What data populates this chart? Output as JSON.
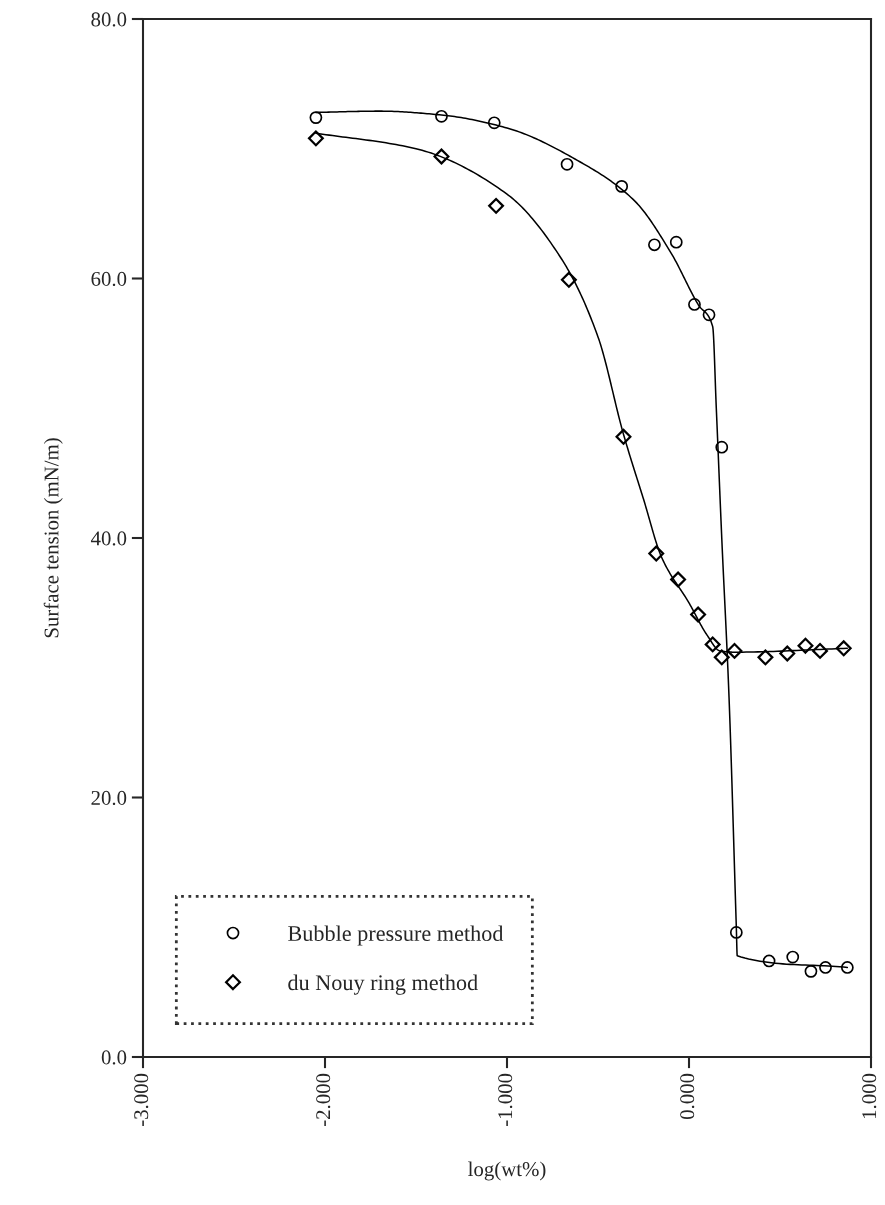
{
  "chart_data": {
    "type": "scatter",
    "xlabel": "log(wt%)",
    "ylabel": "Surface tension (mN/m)",
    "xlim": [
      -3,
      1
    ],
    "ylim": [
      0,
      80
    ],
    "xticks": [
      {
        "value": -3,
        "label": "-3.000"
      },
      {
        "value": -2,
        "label": "-2.000"
      },
      {
        "value": -1,
        "label": "-1.000"
      },
      {
        "value": 0,
        "label": "0.000"
      },
      {
        "value": 1,
        "label": "1.000"
      }
    ],
    "yticks": [
      {
        "value": 0,
        "label": "0.0"
      },
      {
        "value": 20,
        "label": "20.0"
      },
      {
        "value": 40,
        "label": "40.0"
      },
      {
        "value": 60,
        "label": "60.0"
      },
      {
        "value": 80,
        "label": "80.0"
      }
    ],
    "grid": false,
    "legend": "bottom left",
    "series": [
      {
        "name": "Bubble pressure method",
        "marker": "circle",
        "color": "#000000",
        "x": [
          -2.05,
          -1.36,
          -1.07,
          -0.67,
          -0.37,
          -0.19,
          -0.07,
          0.03,
          0.11,
          0.18,
          0.26,
          0.44,
          0.57,
          0.67,
          0.75,
          0.87
        ],
        "values": [
          72.4,
          72.5,
          72.0,
          68.8,
          67.1,
          62.6,
          62.8,
          58.0,
          57.2,
          47.0,
          9.6,
          7.4,
          7.7,
          6.6,
          6.9,
          6.9
        ]
      },
      {
        "name": "du Nouy ring method",
        "marker": "diamond",
        "color": "#000000",
        "x": [
          -2.05,
          -1.36,
          -1.06,
          -0.66,
          -0.36,
          -0.18,
          -0.06,
          0.05,
          0.13,
          0.18,
          0.25,
          0.42,
          0.54,
          0.64,
          0.72,
          0.85
        ],
        "values": [
          70.8,
          69.4,
          65.6,
          59.9,
          47.8,
          38.8,
          36.8,
          34.1,
          31.8,
          30.8,
          31.3,
          30.8,
          31.1,
          31.7,
          31.3,
          31.5
        ]
      },
      {
        "type": "line",
        "marker": "none",
        "line_style": "solid",
        "color": "#000000",
        "x": [
          -2.05,
          -1.7,
          -1.36,
          -1.0,
          -0.6,
          -0.3,
          -0.1,
          0.05,
          0.13,
          0.15,
          0.18,
          0.22,
          0.26,
          0.265,
          0.87
        ],
        "values": [
          72.8,
          72.9,
          72.6,
          71.6,
          69.0,
          66.0,
          62.0,
          58.0,
          56.3,
          50.0,
          40.0,
          27.7,
          10.0,
          7.8,
          6.9
        ]
      },
      {
        "type": "line",
        "marker": "none",
        "line_style": "solid",
        "color": "#000000",
        "x": [
          -2.05,
          -1.5,
          -1.0,
          -0.7,
          -0.5,
          -0.36,
          -0.25,
          -0.15,
          0.0,
          0.1,
          0.17,
          0.25,
          0.87
        ],
        "values": [
          71.2,
          70.0,
          66.5,
          61.5,
          55.5,
          48.0,
          43.0,
          38.5,
          35.0,
          32.5,
          31.3,
          31.2,
          31.5
        ]
      }
    ]
  }
}
